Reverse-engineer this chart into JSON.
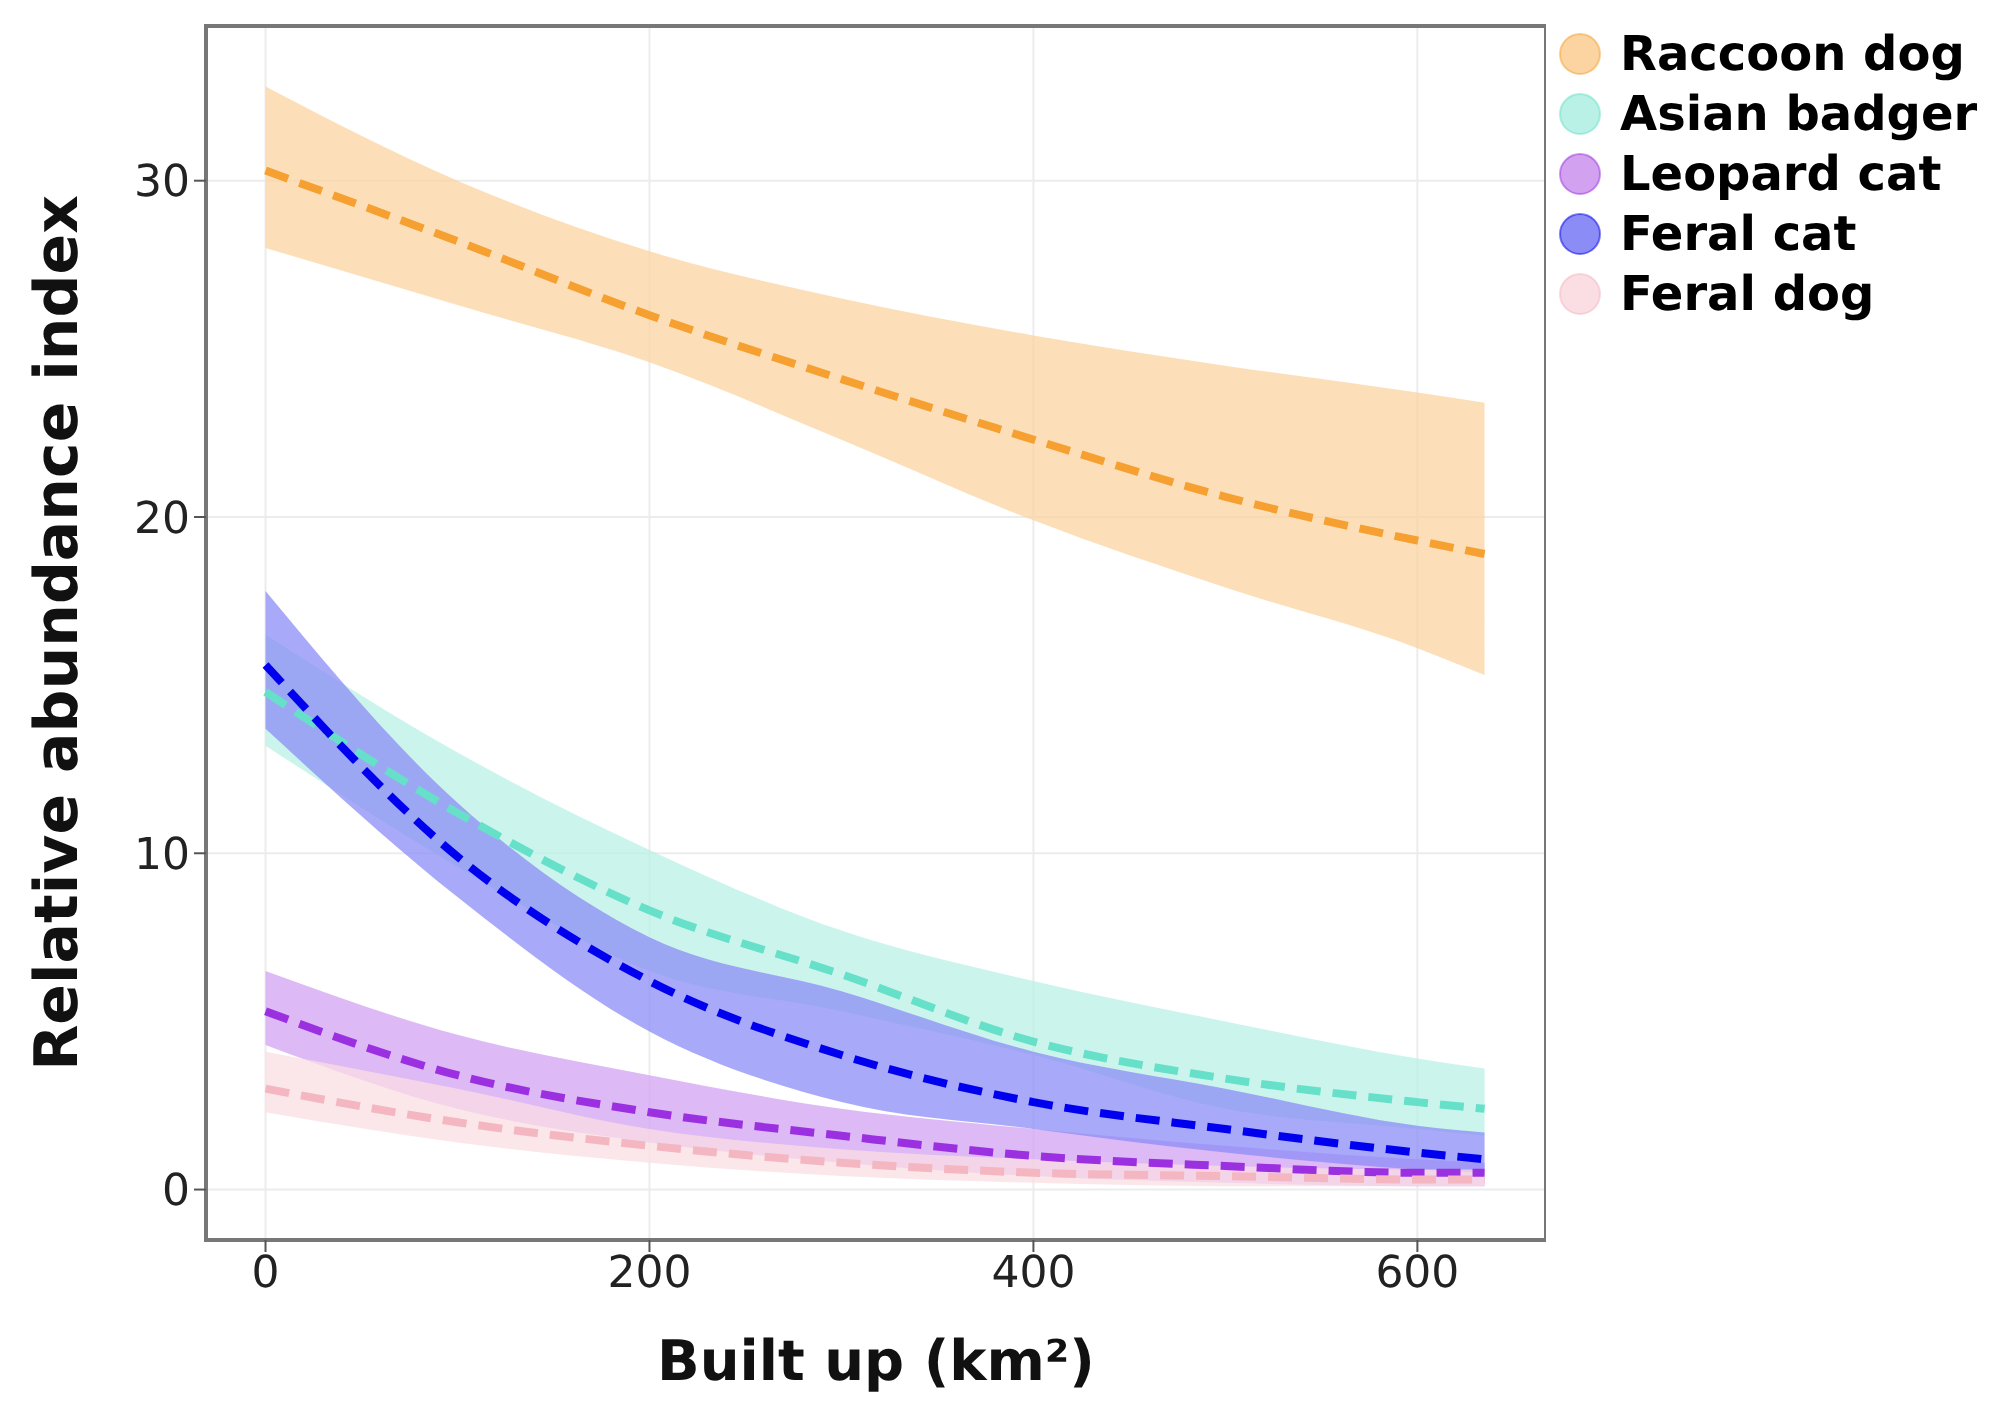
{
  "chart_data": {
    "type": "line",
    "xlabel": "Built up (km²)",
    "ylabel": "Relative abundance index",
    "x": [
      0,
      100,
      200,
      300,
      400,
      500,
      600,
      635
    ],
    "xlim": [
      -31,
      667
    ],
    "xticks": [
      0,
      200,
      400,
      600
    ],
    "ylim": [
      -1.5,
      34.6
    ],
    "yticks": [
      0,
      10,
      20,
      30
    ],
    "grid": true,
    "legend": "right",
    "line_style": "dashed",
    "marker": "none",
    "series": [
      {
        "name": "Raccoon dog",
        "color": "#f5a030",
        "values": [
          30.3,
          28.2,
          26.0,
          24.1,
          22.3,
          20.6,
          19.3,
          18.9
        ],
        "lower": [
          28.0,
          26.3,
          24.6,
          22.3,
          19.9,
          17.9,
          16.1,
          15.3
        ],
        "upper": [
          32.8,
          30.0,
          27.9,
          26.5,
          25.4,
          24.5,
          23.7,
          23.4
        ]
      },
      {
        "name": "Asian badger",
        "color": "#66e0c8",
        "values": [
          14.8,
          11.2,
          8.3,
          6.4,
          4.4,
          3.3,
          2.6,
          2.4
        ],
        "lower": [
          13.2,
          9.6,
          6.5,
          5.3,
          4.0,
          2.4,
          1.8,
          1.6
        ],
        "upper": [
          16.5,
          13.0,
          10.1,
          7.7,
          6.2,
          5.0,
          3.9,
          3.6
        ]
      },
      {
        "name": "Leopard cat",
        "color": "#9b30e0",
        "values": [
          5.3,
          3.4,
          2.3,
          1.6,
          1.0,
          0.7,
          0.5,
          0.5
        ],
        "lower": [
          4.3,
          2.4,
          1.4,
          0.8,
          0.4,
          0.2,
          0.1,
          0.1
        ],
        "upper": [
          6.5,
          4.6,
          3.4,
          2.4,
          1.8,
          1.3,
          0.9,
          0.8
        ]
      },
      {
        "name": "Feral cat",
        "color": "#0000ee",
        "values": [
          15.6,
          9.9,
          6.2,
          4.0,
          2.6,
          1.8,
          1.1,
          0.9
        ],
        "lower": [
          13.7,
          8.7,
          4.7,
          2.6,
          1.8,
          1.1,
          0.6,
          0.5
        ],
        "upper": [
          17.8,
          11.5,
          7.5,
          5.9,
          4.1,
          3.0,
          1.9,
          1.7
        ]
      },
      {
        "name": "Feral dog",
        "color": "#f4b6c0",
        "values": [
          3.0,
          2.0,
          1.3,
          0.8,
          0.5,
          0.4,
          0.3,
          0.3
        ],
        "lower": [
          2.3,
          1.4,
          0.8,
          0.4,
          0.2,
          0.1,
          0.1,
          0.1
        ],
        "upper": [
          4.1,
          3.0,
          1.8,
          1.2,
          0.9,
          0.7,
          0.6,
          0.6
        ]
      }
    ]
  }
}
